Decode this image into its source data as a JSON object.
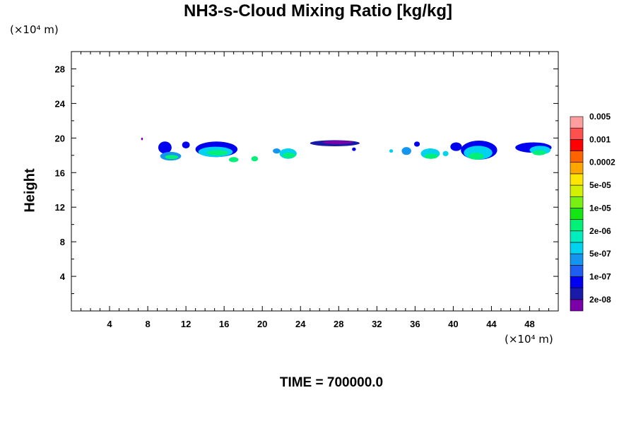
{
  "chart_data": {
    "type": "heatmap",
    "title": "NH3-s-Cloud Mixing Ratio [kg/kg]",
    "xunit": "(×10⁴ m)",
    "yunit": "(×10⁴ m)",
    "ylabel": "Height",
    "xlabel": "",
    "footer": "TIME = 700000.0",
    "xlim": [
      0,
      51
    ],
    "ylim": [
      0,
      30
    ],
    "xticks": [
      4,
      8,
      12,
      16,
      20,
      24,
      28,
      32,
      36,
      40,
      44,
      48
    ],
    "yticks": [
      4,
      8,
      12,
      16,
      20,
      24,
      28
    ],
    "colorbar": {
      "colors": [
        "#7a00a8",
        "#1a1aa8",
        "#0000f0",
        "#1e5ef0",
        "#1496f0",
        "#00d2f0",
        "#00eebe",
        "#00f078",
        "#14e614",
        "#78f014",
        "#d2f000",
        "#ffe600",
        "#ffa500",
        "#ff6400",
        "#ff0000",
        "#ff5050",
        "#ff9e9e"
      ],
      "labels": [
        "2e-08",
        "1e-07",
        "5e-07",
        "2e-06",
        "1e-05",
        "5e-05",
        "0.0002",
        "0.001",
        "0.005"
      ]
    },
    "cloud_patches": [
      {
        "x": 7.4,
        "y": 19.9,
        "rx": 0.1,
        "ry": 0.15,
        "level": 0
      },
      {
        "x": 9.8,
        "y": 18.9,
        "rx": 0.7,
        "ry": 0.7,
        "level": 2
      },
      {
        "x": 10.4,
        "y": 17.9,
        "rx": 1.1,
        "ry": 0.5,
        "level": 4
      },
      {
        "x": 10.5,
        "y": 17.8,
        "rx": 0.7,
        "ry": 0.25,
        "level": 7
      },
      {
        "x": 12.0,
        "y": 19.2,
        "rx": 0.4,
        "ry": 0.4,
        "level": 2
      },
      {
        "x": 15.2,
        "y": 18.7,
        "rx": 2.2,
        "ry": 0.9,
        "level": 2
      },
      {
        "x": 15.1,
        "y": 18.4,
        "rx": 1.8,
        "ry": 0.6,
        "level": 5
      },
      {
        "x": 15.3,
        "y": 18.3,
        "rx": 1.1,
        "ry": 0.3,
        "level": 7
      },
      {
        "x": 17.0,
        "y": 17.5,
        "rx": 0.5,
        "ry": 0.3,
        "level": 7
      },
      {
        "x": 19.2,
        "y": 17.6,
        "rx": 0.35,
        "ry": 0.3,
        "level": 7
      },
      {
        "x": 21.5,
        "y": 18.5,
        "rx": 0.4,
        "ry": 0.3,
        "level": 4
      },
      {
        "x": 22.7,
        "y": 18.2,
        "rx": 0.9,
        "ry": 0.6,
        "level": 5
      },
      {
        "x": 22.8,
        "y": 18.0,
        "rx": 0.7,
        "ry": 0.3,
        "level": 7
      },
      {
        "x": 27.6,
        "y": 19.4,
        "rx": 2.6,
        "ry": 0.35,
        "level": 1
      },
      {
        "x": 27.9,
        "y": 19.5,
        "rx": 1.6,
        "ry": 0.2,
        "level": 0
      },
      {
        "x": 29.6,
        "y": 18.7,
        "rx": 0.2,
        "ry": 0.2,
        "level": 2
      },
      {
        "x": 33.5,
        "y": 18.5,
        "rx": 0.2,
        "ry": 0.2,
        "level": 5
      },
      {
        "x": 35.1,
        "y": 18.5,
        "rx": 0.5,
        "ry": 0.45,
        "level": 4
      },
      {
        "x": 36.2,
        "y": 19.3,
        "rx": 0.3,
        "ry": 0.3,
        "level": 2
      },
      {
        "x": 37.6,
        "y": 18.2,
        "rx": 1.0,
        "ry": 0.6,
        "level": 5
      },
      {
        "x": 37.7,
        "y": 17.9,
        "rx": 0.7,
        "ry": 0.3,
        "level": 7
      },
      {
        "x": 39.2,
        "y": 18.2,
        "rx": 0.3,
        "ry": 0.3,
        "level": 5
      },
      {
        "x": 40.3,
        "y": 19.0,
        "rx": 0.6,
        "ry": 0.5,
        "level": 2
      },
      {
        "x": 42.7,
        "y": 18.6,
        "rx": 1.9,
        "ry": 1.1,
        "level": 2
      },
      {
        "x": 42.6,
        "y": 18.3,
        "rx": 1.5,
        "ry": 0.8,
        "level": 5
      },
      {
        "x": 42.4,
        "y": 17.9,
        "rx": 0.8,
        "ry": 0.4,
        "level": 7
      },
      {
        "x": 48.4,
        "y": 18.9,
        "rx": 1.9,
        "ry": 0.6,
        "level": 2
      },
      {
        "x": 49.1,
        "y": 18.6,
        "rx": 1.1,
        "ry": 0.5,
        "level": 5
      },
      {
        "x": 49.0,
        "y": 18.3,
        "rx": 0.7,
        "ry": 0.3,
        "level": 7
      }
    ]
  }
}
